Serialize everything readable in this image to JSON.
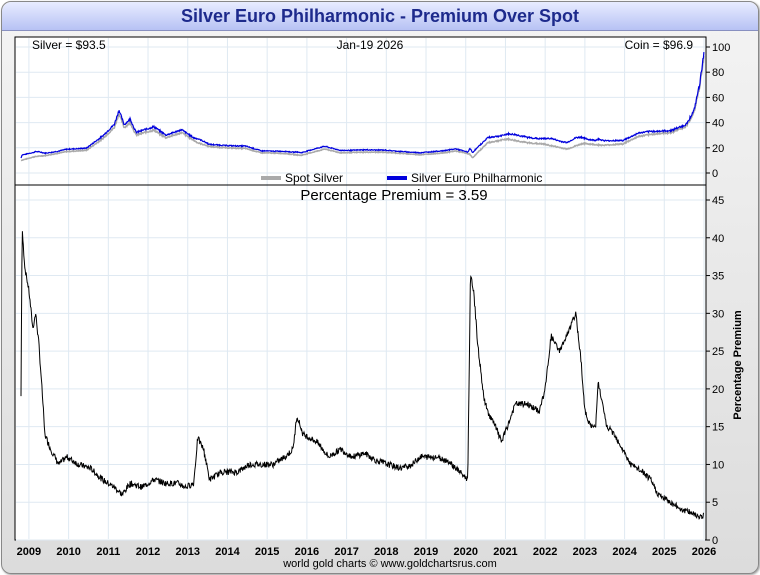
{
  "title": "Silver Euro Philharmonic - Premium Over Spot",
  "footer": "world gold charts © www.goldchartsrus.com",
  "colors": {
    "spot": "#aaaaaa",
    "coin": "#0000dd",
    "premium": "#000000",
    "grid": "#dfe9f2",
    "title": "#1d2a8c"
  },
  "chart_data": [
    {
      "type": "line",
      "panel": "top",
      "annotations": {
        "left": "Silver = $93.5",
        "center": "Jan-19  2026",
        "right": "Coin = $96.9"
      },
      "legend": {
        "placement": "bottom-center",
        "entries": [
          "Spot Silver",
          "Silver Euro Philharmonic"
        ]
      },
      "ylim": [
        -5,
        105
      ],
      "yticks": [
        0,
        20,
        40,
        60,
        80,
        100
      ],
      "series": [
        {
          "name": "Spot Silver",
          "x": [
            2008.85,
            2009.2,
            2009.5,
            2010.0,
            2010.5,
            2010.9,
            2011.2,
            2011.32,
            2011.45,
            2011.6,
            2011.75,
            2011.95,
            2012.2,
            2012.5,
            2012.9,
            2013.3,
            2013.6,
            2014.0,
            2014.5,
            2014.9,
            2015.5,
            2015.9,
            2016.5,
            2016.9,
            2017.5,
            2018.0,
            2018.9,
            2019.5,
            2019.8,
            2020.15,
            2020.22,
            2020.6,
            2021.1,
            2021.6,
            2022.0,
            2022.6,
            2023.0,
            2023.5,
            2024.0,
            2024.4,
            2024.8,
            2025.2,
            2025.6,
            2025.8,
            2025.95,
            2026.05
          ],
          "y": [
            10,
            13,
            14,
            17,
            18,
            27,
            36,
            47,
            36,
            40,
            30,
            32,
            34,
            28,
            32,
            24,
            21,
            20,
            19.5,
            16,
            15.5,
            14,
            19,
            16,
            16.5,
            16.5,
            14.5,
            16,
            17.5,
            15,
            12,
            24,
            27,
            24,
            23,
            19,
            23.5,
            22,
            23,
            29,
            31,
            32,
            37,
            48,
            70,
            93.5
          ]
        }
      ],
      "xlim": [
        2008.7,
        2026.1
      ]
    },
    {
      "type": "line",
      "panel": "bottom",
      "title": "Percentage Premium = 3.59",
      "ylabel": "Percentage Premium",
      "ylim": [
        0,
        47
      ],
      "yticks": [
        0,
        5,
        10,
        15,
        20,
        25,
        30,
        35,
        40,
        45
      ],
      "xticks": [
        "2009",
        "2010",
        "2011",
        "2012",
        "2013",
        "2014",
        "2015",
        "2016",
        "2017",
        "2018",
        "2019",
        "2020",
        "2021",
        "2022",
        "2023",
        "2024",
        "2025",
        "2026"
      ],
      "series": [
        {
          "name": "Percentage Premium",
          "x": [
            2008.85,
            2008.88,
            2008.95,
            2009.05,
            2009.15,
            2009.22,
            2009.3,
            2009.38,
            2009.45,
            2009.6,
            2009.8,
            2010.0,
            2010.3,
            2010.6,
            2010.9,
            2011.2,
            2011.4,
            2011.6,
            2011.9,
            2012.2,
            2012.5,
            2012.8,
            2013.0,
            2013.2,
            2013.3,
            2013.45,
            2013.6,
            2013.9,
            2014.3,
            2014.6,
            2014.9,
            2015.2,
            2015.5,
            2015.7,
            2015.8,
            2015.95,
            2016.3,
            2016.6,
            2016.9,
            2017.2,
            2017.5,
            2017.8,
            2018.1,
            2018.4,
            2018.7,
            2018.9,
            2019.3,
            2019.6,
            2019.9,
            2020.1,
            2020.17,
            2020.25,
            2020.35,
            2020.5,
            2020.6,
            2020.8,
            2020.95,
            2021.1,
            2021.3,
            2021.6,
            2021.9,
            2022.05,
            2022.2,
            2022.4,
            2022.6,
            2022.82,
            2022.95,
            2023.05,
            2023.2,
            2023.32,
            2023.38,
            2023.6,
            2023.8,
            2024.0,
            2024.2,
            2024.5,
            2024.7,
            2024.9,
            2025.2,
            2025.5,
            2025.8,
            2026.0,
            2026.05
          ],
          "y": [
            19,
            41,
            36,
            33,
            28,
            30,
            26,
            20,
            14,
            12,
            10,
            11,
            10,
            9.5,
            8,
            7,
            6,
            7.5,
            7,
            8,
            7.5,
            7.5,
            7,
            7.5,
            13.5,
            12,
            8,
            9,
            9,
            10,
            10,
            10,
            11,
            12,
            16.5,
            14,
            13,
            11,
            12,
            11,
            11.5,
            10.5,
            10,
            9.5,
            10,
            11,
            11,
            10.5,
            9,
            8,
            35,
            33,
            26,
            19,
            17,
            15,
            13,
            15,
            18,
            18,
            17,
            20,
            27,
            25,
            27,
            30,
            24,
            17,
            15,
            15,
            21,
            15,
            14,
            12,
            10,
            9,
            8,
            6,
            5,
            4,
            3.5,
            3,
            3.59
          ]
        }
      ],
      "xlim": [
        2008.7,
        2026.1
      ]
    }
  ]
}
